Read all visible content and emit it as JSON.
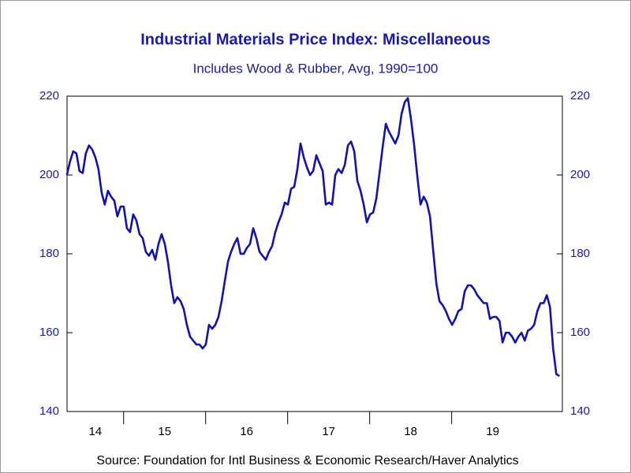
{
  "chart_data": {
    "type": "line",
    "title": "Industrial Materials Price Index: Miscellaneous",
    "subtitle": "Includes Wood & Rubber, Avg, 1990=100",
    "source": "Source:  Foundation for Intl Business & Economic Research/Haver Analytics",
    "xlim": [
      2014.31,
      2020.35
    ],
    "xticks": [
      {
        "value": 2014,
        "label": "14"
      },
      {
        "value": 2015,
        "label": "15"
      },
      {
        "value": 2016,
        "label": "16"
      },
      {
        "value": 2017,
        "label": "17"
      },
      {
        "value": 2018,
        "label": "18"
      },
      {
        "value": 2019,
        "label": "19"
      }
    ],
    "ylim": [
      140,
      220
    ],
    "yticks": [
      140,
      160,
      180,
      200,
      220
    ],
    "y2lim": [
      140,
      220
    ],
    "y2ticks": [
      140,
      160,
      180,
      200,
      220
    ],
    "x": [
      2014.308,
      2014.347,
      2014.385,
      2014.424,
      2014.462,
      2014.501,
      2014.539,
      2014.578,
      2014.616,
      2014.655,
      2014.693,
      2014.732,
      2014.77,
      2014.809,
      2014.847,
      2014.886,
      2014.924,
      2014.963,
      2015.001,
      2015.04,
      2015.078,
      2015.117,
      2015.155,
      2015.194,
      2015.232,
      2015.271,
      2015.309,
      2015.348,
      2015.386,
      2015.425,
      2015.463,
      2015.502,
      2015.54,
      2015.579,
      2015.617,
      2015.656,
      2015.694,
      2015.733,
      2015.771,
      2015.81,
      2015.848,
      2015.887,
      2015.925,
      2015.964,
      2016.002,
      2016.041,
      2016.079,
      2016.118,
      2016.156,
      2016.195,
      2016.233,
      2016.272,
      2016.31,
      2016.349,
      2016.387,
      2016.426,
      2016.464,
      2016.503,
      2016.541,
      2016.58,
      2016.618,
      2016.657,
      2016.695,
      2016.734,
      2016.772,
      2016.811,
      2016.849,
      2016.888,
      2016.926,
      2016.965,
      2017.003,
      2017.042,
      2017.08,
      2017.119,
      2017.157,
      2017.196,
      2017.234,
      2017.273,
      2017.311,
      2017.35,
      2017.388,
      2017.427,
      2017.465,
      2017.504,
      2017.542,
      2017.581,
      2017.619,
      2017.658,
      2017.696,
      2017.735,
      2017.773,
      2017.812,
      2017.85,
      2017.889,
      2017.927,
      2017.966,
      2018.004,
      2018.043,
      2018.081,
      2018.12,
      2018.158,
      2018.197,
      2018.235,
      2018.274,
      2018.312,
      2018.351,
      2018.389,
      2018.428,
      2018.466,
      2018.505,
      2018.543,
      2018.582,
      2018.62,
      2018.659,
      2018.697,
      2018.736,
      2018.774,
      2018.813,
      2018.851,
      2018.89,
      2018.928,
      2018.967,
      2019.005,
      2019.044,
      2019.082,
      2019.121,
      2019.159,
      2019.198,
      2019.236,
      2019.275,
      2019.313,
      2019.352,
      2019.39,
      2019.429,
      2019.467,
      2019.506,
      2019.544,
      2019.583,
      2019.621,
      2019.66,
      2019.698,
      2019.737,
      2019.775,
      2019.814,
      2019.852,
      2019.891,
      2019.929,
      2019.968,
      2020.006,
      2020.045,
      2020.083,
      2020.122,
      2020.16,
      2020.199,
      2020.237,
      2020.276,
      2020.314
    ],
    "series": [
      {
        "name": "Miscellaneous",
        "color": "#1212b0",
        "values": [
          200,
          203.5,
          206,
          205.5,
          201,
          200.5,
          205.5,
          207.5,
          206.5,
          204.5,
          201.5,
          195.5,
          192.5,
          196,
          194.5,
          193.5,
          189.5,
          192,
          192,
          186.5,
          185.5,
          190,
          188.5,
          185,
          184,
          180.5,
          179.5,
          181,
          178.5,
          182.5,
          185,
          182.5,
          178,
          172,
          167.5,
          169,
          168,
          166,
          162,
          159,
          158,
          157,
          157,
          156,
          157,
          162,
          161,
          162,
          164,
          168,
          173,
          178,
          180.5,
          182.5,
          184,
          180,
          180,
          181.5,
          182.5,
          186.5,
          184,
          180.5,
          179.5,
          178.5,
          180.5,
          182,
          185.5,
          188,
          190,
          193,
          192.5,
          196.5,
          197,
          201.5,
          208,
          204.5,
          202,
          200,
          201,
          205,
          203,
          201,
          192.5,
          193,
          192.5,
          200,
          201.5,
          200.5,
          202.5,
          207.5,
          208.5,
          206,
          198.5,
          196,
          192.5,
          188,
          190,
          190.5,
          194,
          200.5,
          207,
          213,
          211,
          209.5,
          208,
          210,
          215.5,
          218.5,
          219.5,
          214,
          207.5,
          199.5,
          192.5,
          194.5,
          193,
          189.5,
          181,
          172.5,
          168,
          167,
          165.5,
          163.5,
          162,
          163.5,
          165.5,
          166,
          170.5,
          172,
          172,
          171,
          169.5,
          168.5,
          167.5,
          167.5,
          163.5,
          164,
          164,
          163,
          157.5,
          160,
          160,
          159,
          157.5,
          159,
          160,
          158,
          160.5,
          161,
          162,
          165.5,
          167.5,
          167.5,
          169.5,
          166.5,
          156,
          149.5,
          149
        ]
      }
    ]
  }
}
